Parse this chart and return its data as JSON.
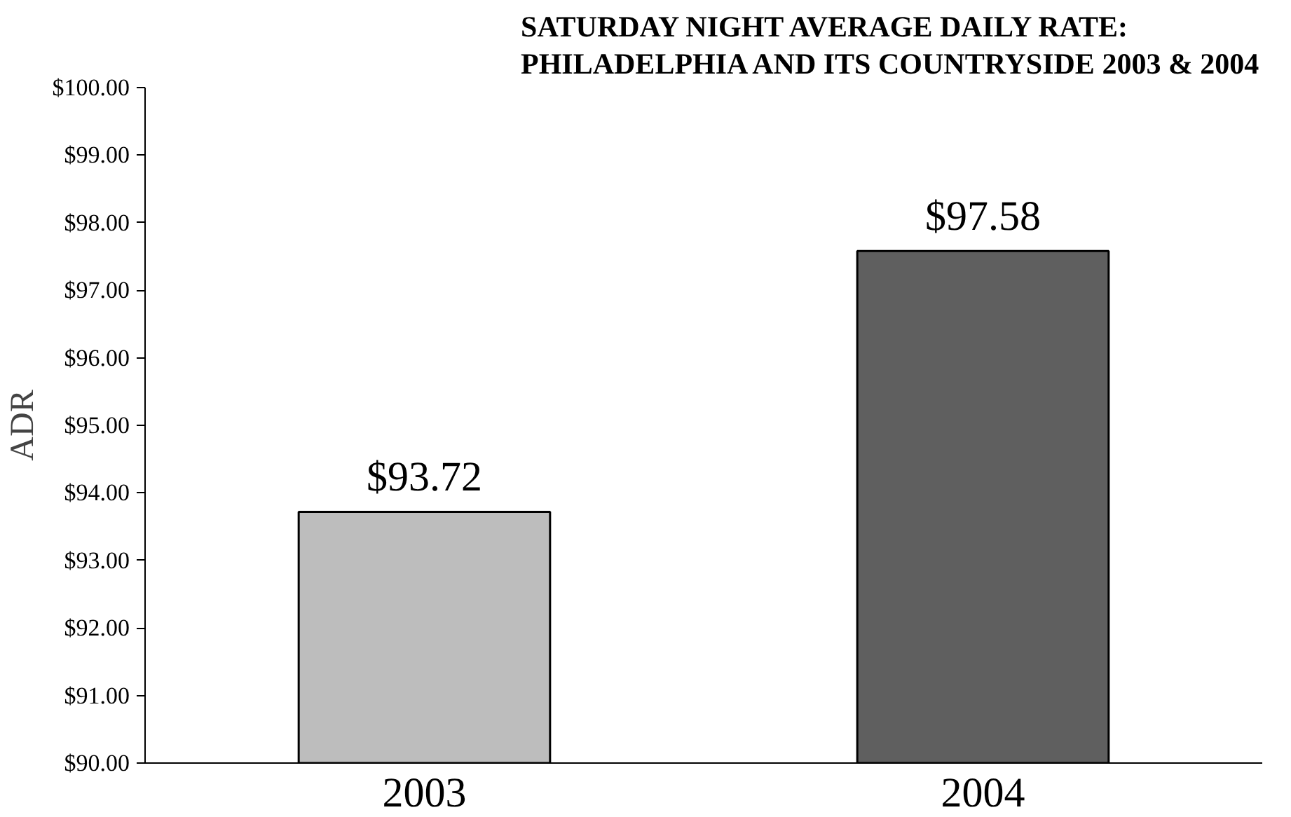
{
  "chart_data": {
    "type": "bar",
    "title": "SATURDAY NIGHT AVERAGE DAILY RATE:\nPHILADELPHIA AND ITS COUNTRYSIDE 2003 & 2004",
    "ylabel": "ADR",
    "categories": [
      "2003",
      "2004"
    ],
    "values": [
      93.72,
      97.58
    ],
    "colors": [
      "#bdbdbd",
      "#5f5f5f"
    ],
    "value_labels": [
      "$93.72",
      "$97.58"
    ],
    "ylim": [
      90,
      100
    ],
    "yticks": [
      {
        "value": 90,
        "label": "$90.00"
      },
      {
        "value": 91,
        "label": "$91.00"
      },
      {
        "value": 92,
        "label": "$92.00"
      },
      {
        "value": 93,
        "label": "$93.00"
      },
      {
        "value": 94,
        "label": "$94.00"
      },
      {
        "value": 95,
        "label": "$95.00"
      },
      {
        "value": 96,
        "label": "$96.00"
      },
      {
        "value": 97,
        "label": "$97.00"
      },
      {
        "value": 98,
        "label": "$98.00"
      },
      {
        "value": 99,
        "label": "$99.00"
      },
      {
        "value": 100,
        "label": "$100.00"
      }
    ],
    "grid": false
  }
}
